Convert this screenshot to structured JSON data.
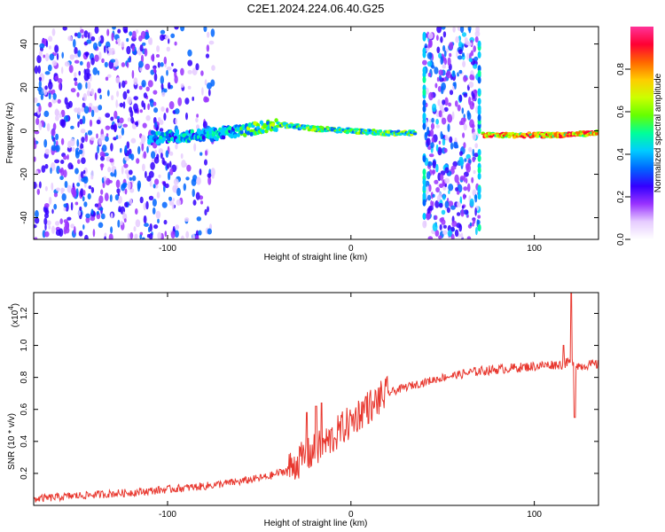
{
  "title": "C2E1.2024.224.06.40.G25",
  "chart_data": [
    {
      "type": "heatmap",
      "xlabel": "Height of straight line (km)",
      "ylabel": "Frequency (Hz)",
      "xlim": [
        -173,
        135
      ],
      "ylim": [
        -50,
        48
      ],
      "x_ticks": [
        "-100",
        "0",
        "100"
      ],
      "y_ticks": [
        "40",
        "20",
        "0",
        "-20",
        "-40"
      ],
      "y_tick_values": [
        40,
        20,
        0,
        -20,
        -40
      ],
      "x_tick_values": [
        -100,
        0,
        100
      ],
      "colorbar": {
        "label": "Normalized spectral amplitude",
        "range": [
          0,
          1
        ],
        "ticks": [
          "0.0",
          "0.2",
          "0.4",
          "0.6",
          "0.8"
        ],
        "tick_values": [
          0,
          0.2,
          0.4,
          0.6,
          0.8
        ],
        "colors": [
          "#ffffff",
          "#e6ccff",
          "#9933ff",
          "#3300ff",
          "#0066ff",
          "#00ccff",
          "#00ff99",
          "#66ff00",
          "#ccff00",
          "#ffcc00",
          "#ff6600",
          "#ff0033",
          "#ff3399"
        ]
      },
      "features": [
        {
          "name": "broadband noise",
          "x_range": [
            -173,
            -75
          ],
          "f_range": [
            -50,
            48
          ],
          "amplitude": 0.3
        },
        {
          "name": "spectral line",
          "x": [
            -110,
            -80,
            -60,
            -40,
            -20,
            0,
            20,
            35
          ],
          "f": [
            -3,
            -2,
            0,
            3,
            1,
            0,
            -1,
            -1
          ],
          "amplitude": 0.55
        },
        {
          "name": "vertical gap band",
          "x_range": [
            40,
            70
          ],
          "f_range": [
            -50,
            48
          ],
          "amplitude": 0.35
        },
        {
          "name": "spectral line",
          "x": [
            72,
            90,
            110,
            135
          ],
          "f": [
            -2,
            -2,
            -2,
            -1
          ],
          "amplitude": 0.8
        }
      ]
    },
    {
      "type": "line",
      "xlabel": "Height of straight line (km)",
      "ylabel": "SNR (10 * v/v)",
      "scale_label": "(x10",
      "scale_exp": "4",
      "scale_close": ")",
      "xlim": [
        -173,
        135
      ],
      "ylim": [
        0,
        1.33
      ],
      "x_ticks": [
        "-100",
        "0",
        "100"
      ],
      "x_tick_values": [
        -100,
        0,
        100
      ],
      "y_ticks": [
        "0.2",
        "0.4",
        "0.6",
        "0.8",
        "1.0",
        "1.2"
      ],
      "y_tick_values": [
        0.2,
        0.4,
        0.6,
        0.8,
        1.0,
        1.2
      ],
      "color": "#e8372e",
      "series": [
        {
          "x": [
            -173,
            -150,
            -120,
            -100,
            -80,
            -60,
            -45,
            -35,
            -28,
            -20,
            -15,
            -10,
            -5,
            0,
            5,
            10,
            15,
            20,
            30,
            40,
            50,
            60,
            70,
            80,
            90,
            100,
            110,
            115,
            120,
            125,
            130,
            135
          ],
          "values": [
            0.04,
            0.06,
            0.08,
            0.1,
            0.12,
            0.15,
            0.18,
            0.22,
            0.28,
            0.34,
            0.38,
            0.42,
            0.48,
            0.52,
            0.58,
            0.62,
            0.66,
            0.7,
            0.74,
            0.77,
            0.8,
            0.82,
            0.84,
            0.85,
            0.86,
            0.87,
            0.88,
            0.88,
            0.9,
            0.87,
            0.88,
            0.88
          ],
          "spikes": [
            {
              "x": -24,
              "value": 0.58
            },
            {
              "x": -19,
              "value": 0.62
            },
            {
              "x": -16,
              "value": 0.64
            },
            {
              "x": 8,
              "value": 0.68
            },
            {
              "x": 12,
              "value": 0.65
            },
            {
              "x": 116,
              "value": 1.0
            },
            {
              "x": 120,
              "value": 1.33
            },
            {
              "x": 122,
              "value": 0.55
            }
          ]
        }
      ]
    }
  ]
}
